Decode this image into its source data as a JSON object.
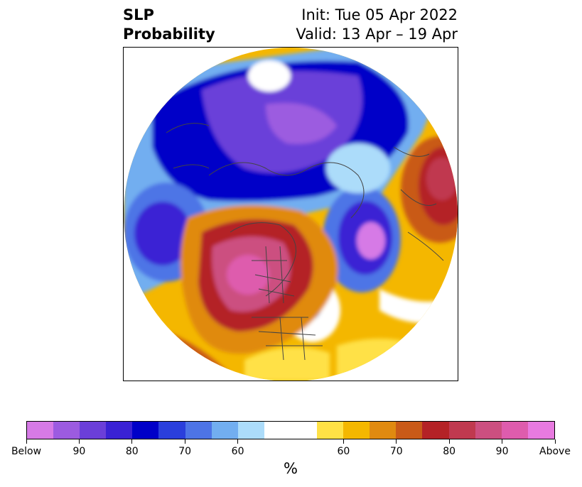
{
  "title": {
    "left_line1": "SLP",
    "left_line2": "Probability",
    "right_line1": "Init: Tue 05 Apr 2022",
    "right_line2": "Valid: 13 Apr – 19 Apr"
  },
  "map": {
    "projection": "north-polar-stereographic",
    "field": "SLP probability",
    "features": [
      "coastlines",
      "country-borders",
      "state-province-borders"
    ]
  },
  "colorbar": {
    "units": "%",
    "segments": [
      {
        "category": "Below",
        "color": "#d67ae6"
      },
      {
        "category": "Below",
        "color": "#9c5be0"
      },
      {
        "category": "Below",
        "color": "#6b3fd9"
      },
      {
        "category": "Below",
        "color": "#3a22d4"
      },
      {
        "category": "Below",
        "color": "#0000c8"
      },
      {
        "category": "Below",
        "color": "#2a3fdc"
      },
      {
        "category": "Below",
        "color": "#4d74e6"
      },
      {
        "category": "Below",
        "color": "#72aef0"
      },
      {
        "category": "Below",
        "color": "#acdcfa"
      },
      {
        "category": "Neutral",
        "color": "#ffffff"
      },
      {
        "category": "Neutral",
        "color": "#ffffff"
      },
      {
        "category": "Above",
        "color": "#ffe146"
      },
      {
        "category": "Above",
        "color": "#f4b700"
      },
      {
        "category": "Above",
        "color": "#e08a10"
      },
      {
        "category": "Above",
        "color": "#c95a18"
      },
      {
        "category": "Above",
        "color": "#b42226"
      },
      {
        "category": "Above",
        "color": "#c0394f"
      },
      {
        "category": "Above",
        "color": "#cc4f80"
      },
      {
        "category": "Above",
        "color": "#de5cad"
      },
      {
        "category": "Above",
        "color": "#e87ae0"
      }
    ],
    "tick_labels": [
      "Below",
      "90",
      "80",
      "70",
      "60",
      "60",
      "70",
      "80",
      "90",
      "Above"
    ]
  }
}
